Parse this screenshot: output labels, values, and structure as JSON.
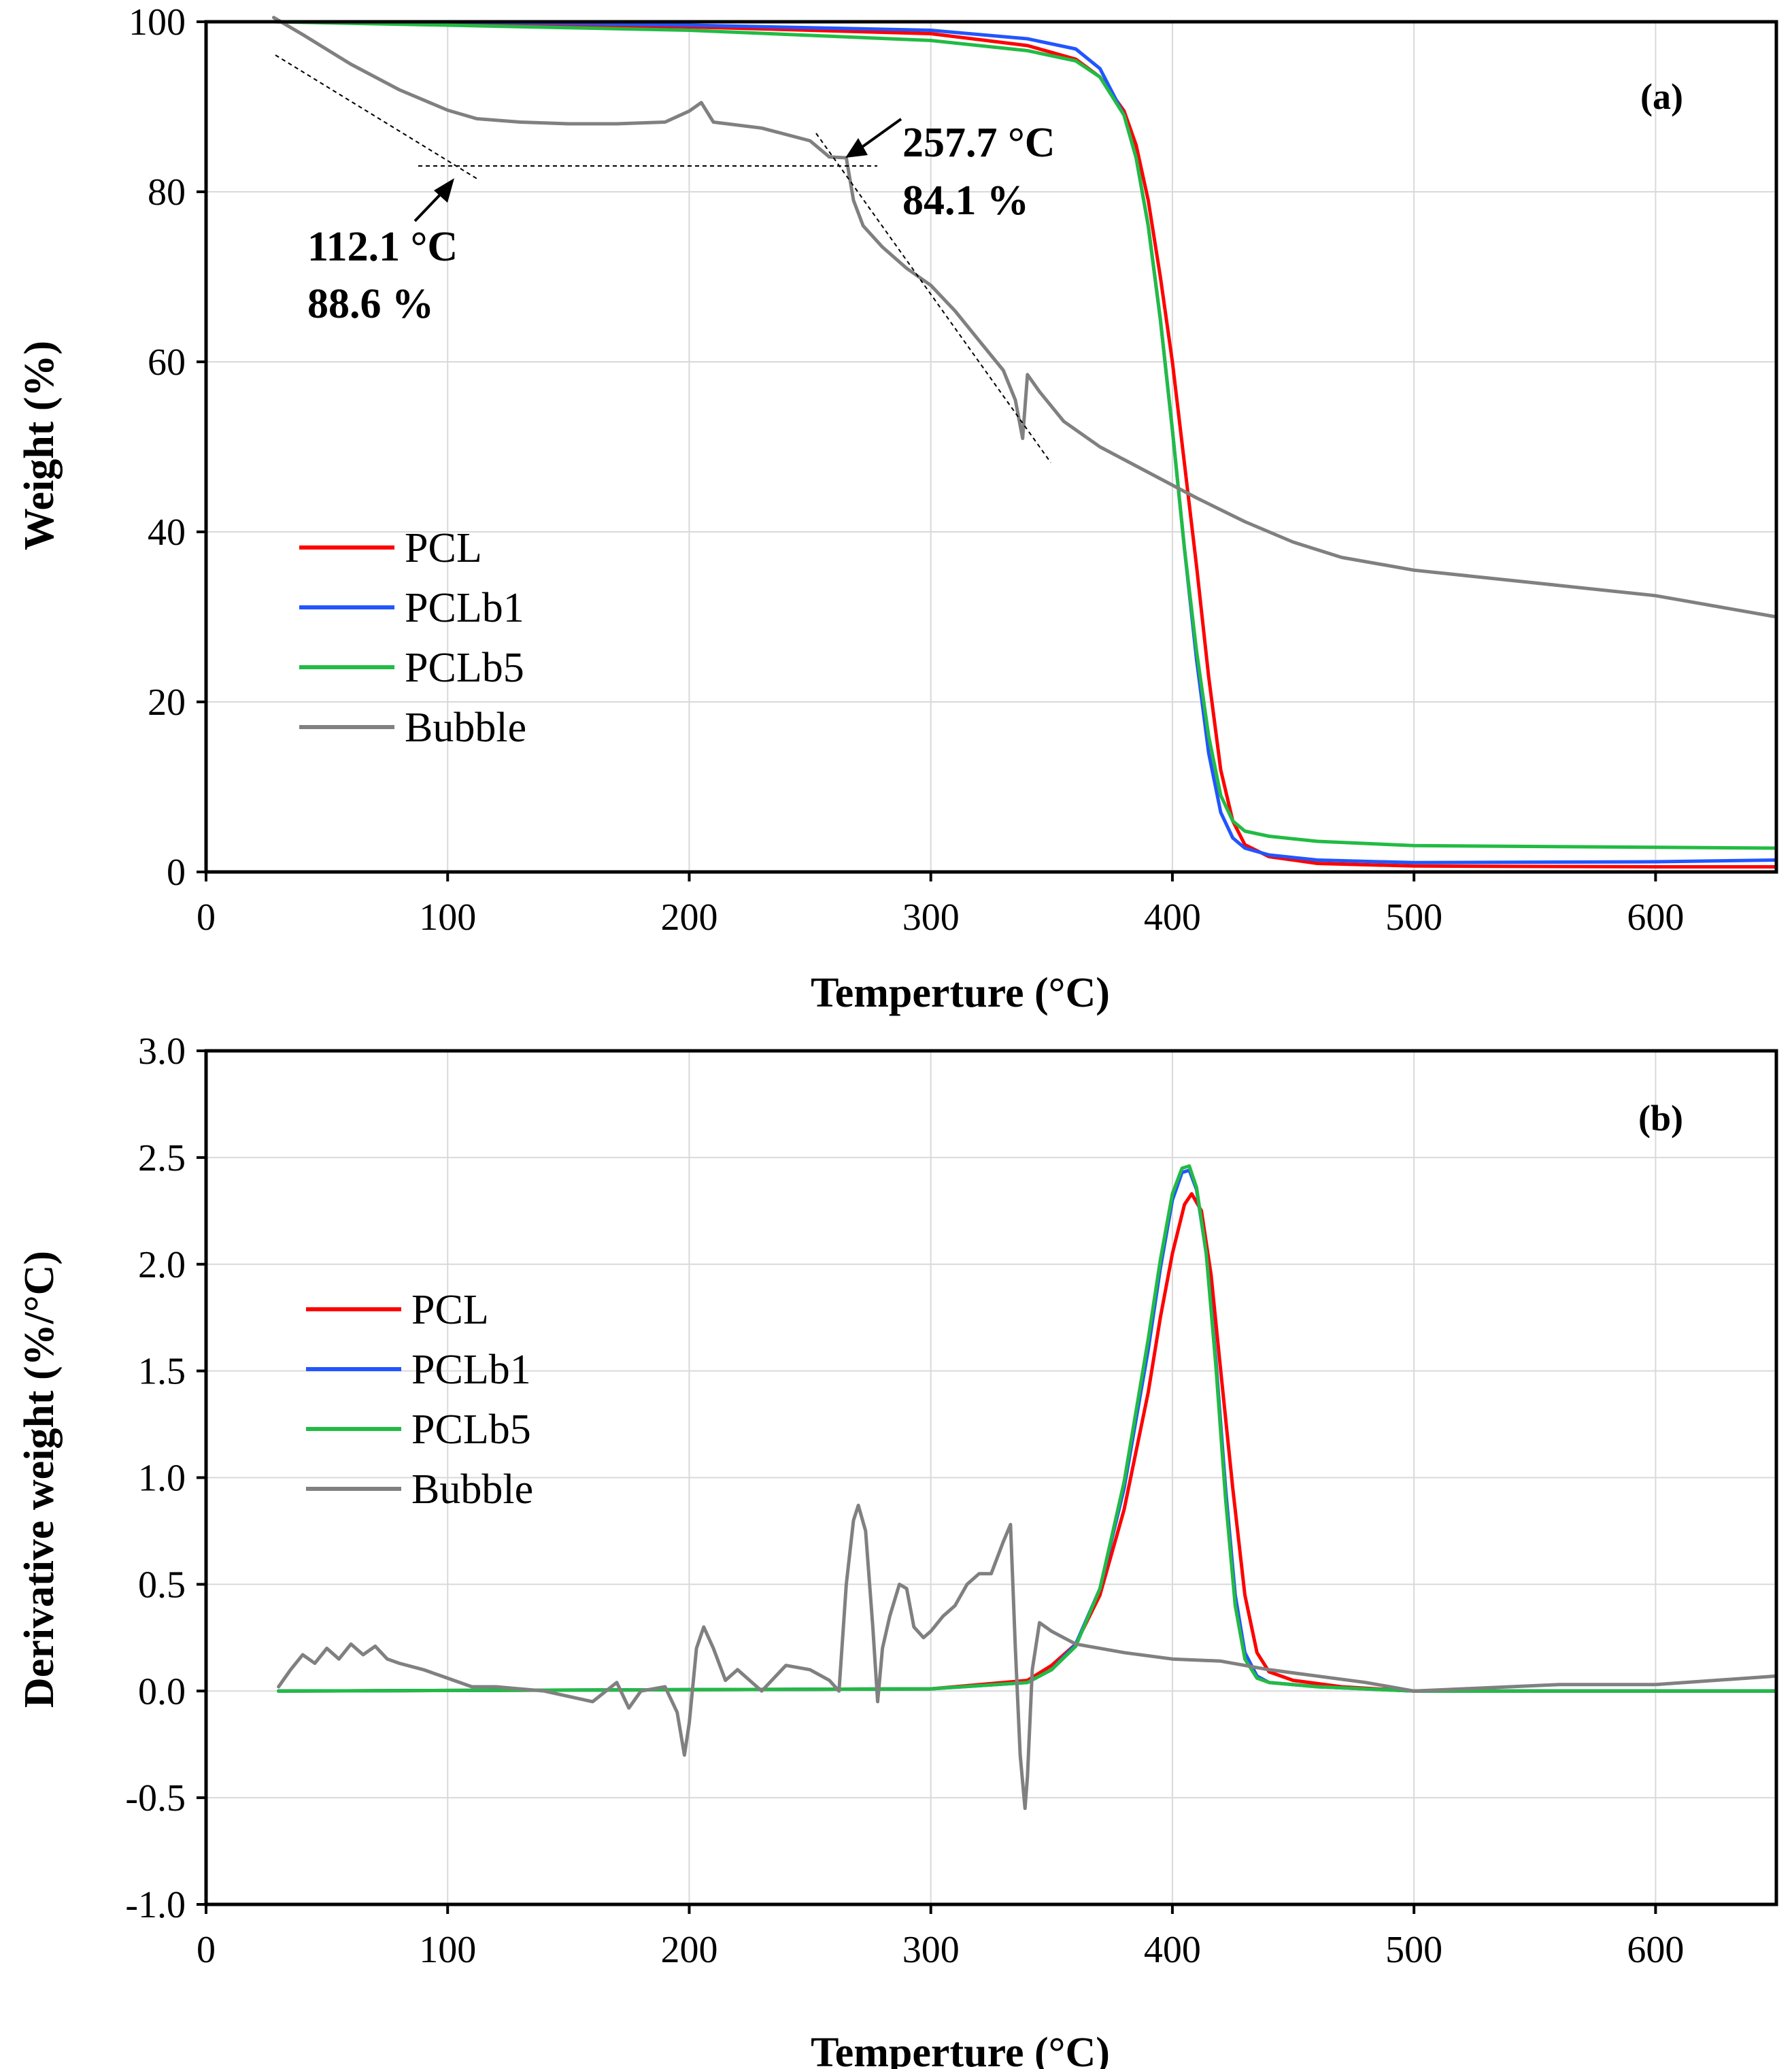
{
  "chart_data": [
    {
      "panel": "(a)",
      "type": "line",
      "xlabel": "Temperture (°C)",
      "ylabel": "Weight (%)",
      "xlim": [
        0,
        650
      ],
      "ylim": [
        0,
        100
      ],
      "xticks": [
        0,
        100,
        200,
        300,
        400,
        500,
        600
      ],
      "yticks": [
        0,
        20,
        40,
        60,
        80,
        100
      ],
      "xtick_labels": [
        "0",
        "100",
        "200",
        "300",
        "400",
        "500",
        "600"
      ],
      "ytick_labels": [
        "0",
        "20",
        "40",
        "60",
        "80",
        "100"
      ],
      "grid": true,
      "legend_position": "center-left",
      "series": [
        {
          "name": "PCL",
          "color": "#ff0000",
          "x": [
            28,
            100,
            200,
            300,
            340,
            360,
            370,
            380,
            385,
            390,
            395,
            400,
            405,
            410,
            415,
            420,
            425,
            430,
            440,
            460,
            500,
            600,
            650
          ],
          "y": [
            100,
            99.8,
            99.4,
            98.6,
            97.2,
            95.6,
            93.5,
            89.5,
            85.5,
            79,
            70,
            60,
            48,
            36,
            23,
            12,
            6,
            3.2,
            1.8,
            1.0,
            0.7,
            0.6,
            0.6
          ]
        },
        {
          "name": "PCLb1",
          "color": "#2255ff",
          "x": [
            28,
            100,
            200,
            300,
            340,
            360,
            370,
            380,
            385,
            390,
            395,
            400,
            405,
            410,
            415,
            420,
            425,
            430,
            440,
            460,
            500,
            600,
            650
          ],
          "y": [
            100,
            100,
            99.6,
            99.0,
            98.0,
            96.8,
            94.5,
            89,
            84,
            76,
            65,
            52,
            38,
            25,
            14,
            7,
            4,
            2.8,
            2.0,
            1.4,
            1.1,
            1.2,
            1.4
          ]
        },
        {
          "name": "PCLb5",
          "color": "#22bb44",
          "x": [
            28,
            100,
            200,
            300,
            340,
            360,
            370,
            380,
            385,
            390,
            395,
            400,
            405,
            410,
            415,
            420,
            425,
            430,
            440,
            460,
            500,
            600,
            650
          ],
          "y": [
            100,
            99.6,
            99.0,
            97.8,
            96.6,
            95.4,
            93.5,
            89,
            84,
            76,
            65,
            52,
            38,
            26,
            16,
            9,
            6,
            4.8,
            4.2,
            3.6,
            3.1,
            2.9,
            2.8
          ]
        },
        {
          "name": "Bubble",
          "color": "#808080",
          "x": [
            28,
            40,
            60,
            80,
            100,
            112,
            130,
            150,
            170,
            190,
            200,
            205,
            210,
            230,
            250,
            258,
            265,
            268,
            272,
            280,
            290,
            300,
            310,
            320,
            330,
            335,
            338,
            340,
            345,
            355,
            370,
            390,
            410,
            430,
            450,
            470,
            500,
            550,
            600,
            650
          ],
          "y": [
            100.5,
            98.5,
            95,
            92,
            89.6,
            88.6,
            88.2,
            88.0,
            88.0,
            88.2,
            89.5,
            90.5,
            88.2,
            87.5,
            86.0,
            84.1,
            84.0,
            79,
            76,
            73.5,
            71,
            69,
            66,
            62.5,
            59,
            55.5,
            51,
            58.5,
            56.5,
            53,
            50,
            47,
            44,
            41.2,
            38.8,
            37,
            35.5,
            34,
            32.5,
            30
          ]
        }
      ],
      "annotations": [
        {
          "text": "112.1 °C",
          "text2": "88.6 %",
          "x": 112.1,
          "y": 88.6
        },
        {
          "text": "257.7 °C",
          "text2": "84.1 %",
          "x": 257.7,
          "y": 84.1
        }
      ]
    },
    {
      "panel": "(b)",
      "type": "line",
      "xlabel": "Temperture (°C)",
      "ylabel": "Derivative weight (%/°C)",
      "xlim": [
        0,
        650
      ],
      "ylim": [
        -1.0,
        3.0
      ],
      "xticks": [
        0,
        100,
        200,
        300,
        400,
        500,
        600
      ],
      "yticks": [
        -1.0,
        -0.5,
        0.0,
        0.5,
        1.0,
        1.5,
        2.0,
        2.5,
        3.0
      ],
      "xtick_labels": [
        "0",
        "100",
        "200",
        "300",
        "400",
        "500",
        "600"
      ],
      "ytick_labels": [
        "-1.0",
        "-0.5",
        "0.0",
        "0.5",
        "1.0",
        "1.5",
        "2.0",
        "2.5",
        "3.0"
      ],
      "grid": true,
      "legend_position": "center-left",
      "series": [
        {
          "name": "PCL",
          "color": "#ff0000",
          "x": [
            30,
            300,
            340,
            350,
            360,
            370,
            380,
            390,
            395,
            400,
            405,
            408,
            412,
            416,
            420,
            425,
            430,
            435,
            440,
            450,
            470,
            500,
            650
          ],
          "y": [
            0,
            0.01,
            0.05,
            0.12,
            0.22,
            0.45,
            0.85,
            1.4,
            1.75,
            2.05,
            2.28,
            2.33,
            2.25,
            1.95,
            1.5,
            0.95,
            0.45,
            0.18,
            0.09,
            0.05,
            0.02,
            0,
            0
          ]
        },
        {
          "name": "PCLb1",
          "color": "#2255ff",
          "x": [
            30,
            300,
            340,
            350,
            360,
            370,
            380,
            390,
            395,
            400,
            404,
            407,
            410,
            414,
            418,
            422,
            426,
            430,
            435,
            440,
            460,
            500,
            650
          ],
          "y": [
            0,
            0.01,
            0.04,
            0.1,
            0.22,
            0.48,
            0.95,
            1.6,
            1.98,
            2.3,
            2.43,
            2.44,
            2.35,
            2.05,
            1.55,
            0.95,
            0.45,
            0.18,
            0.07,
            0.04,
            0.02,
            0,
            0
          ]
        },
        {
          "name": "PCLb5",
          "color": "#22bb44",
          "x": [
            30,
            300,
            340,
            350,
            360,
            370,
            380,
            390,
            395,
            400,
            404,
            407,
            410,
            414,
            418,
            422,
            426,
            430,
            435,
            440,
            460,
            500,
            650
          ],
          "y": [
            0,
            0.01,
            0.04,
            0.1,
            0.21,
            0.48,
            0.98,
            1.65,
            2.02,
            2.33,
            2.45,
            2.46,
            2.36,
            2.05,
            1.52,
            0.9,
            0.4,
            0.15,
            0.06,
            0.04,
            0.02,
            0,
            0
          ]
        },
        {
          "name": "Bubble",
          "color": "#808080",
          "x": [
            30,
            35,
            40,
            45,
            50,
            55,
            60,
            65,
            70,
            75,
            80,
            90,
            100,
            110,
            120,
            140,
            160,
            170,
            175,
            180,
            190,
            195,
            198,
            200,
            203,
            206,
            210,
            215,
            220,
            230,
            240,
            250,
            258,
            262,
            265,
            268,
            270,
            273,
            276,
            278,
            280,
            283,
            287,
            290,
            293,
            297,
            300,
            305,
            310,
            315,
            320,
            325,
            330,
            333,
            335,
            337,
            339,
            340,
            342,
            345,
            350,
            360,
            380,
            400,
            420,
            440,
            460,
            480,
            500,
            520,
            560,
            600,
            650
          ],
          "y": [
            0.02,
            0.1,
            0.17,
            0.13,
            0.2,
            0.15,
            0.22,
            0.17,
            0.21,
            0.15,
            0.13,
            0.1,
            0.06,
            0.02,
            0.02,
            0.0,
            -0.05,
            0.04,
            -0.08,
            0.0,
            0.02,
            -0.1,
            -0.3,
            -0.15,
            0.2,
            0.3,
            0.2,
            0.05,
            0.1,
            0.0,
            0.12,
            0.1,
            0.05,
            0.0,
            0.5,
            0.8,
            0.87,
            0.75,
            0.3,
            -0.05,
            0.2,
            0.35,
            0.5,
            0.48,
            0.3,
            0.25,
            0.28,
            0.35,
            0.4,
            0.5,
            0.55,
            0.55,
            0.7,
            0.78,
            0.2,
            -0.3,
            -0.55,
            -0.4,
            0.1,
            0.32,
            0.28,
            0.22,
            0.18,
            0.15,
            0.14,
            0.1,
            0.07,
            0.04,
            0.0,
            0.01,
            0.03,
            0.03,
            0.07
          ]
        }
      ],
      "annotations": []
    }
  ]
}
